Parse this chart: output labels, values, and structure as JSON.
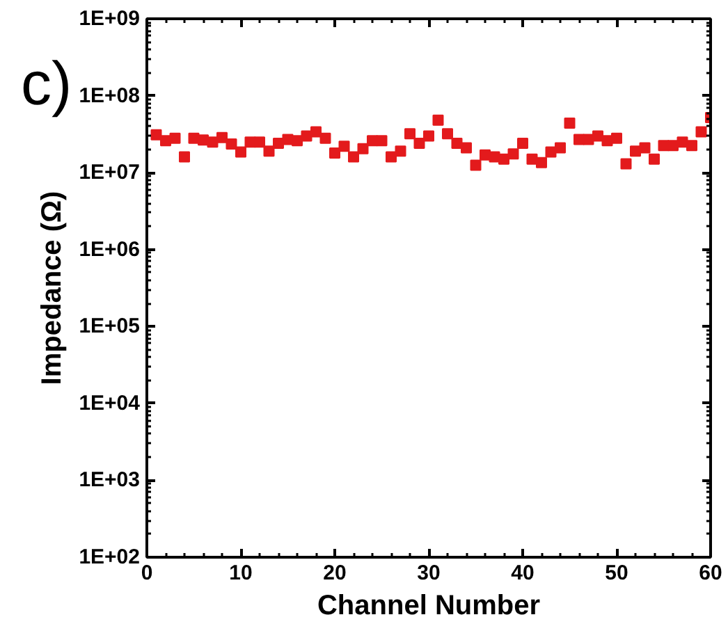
{
  "chart_data": {
    "type": "scatter",
    "xlabel": "Channel Number",
    "ylabel": "Impedance (Ω)",
    "annotations": [
      "c)"
    ],
    "x": [
      1,
      2,
      3,
      4,
      5,
      6,
      7,
      8,
      9,
      10,
      11,
      12,
      13,
      14,
      15,
      16,
      17,
      18,
      19,
      20,
      21,
      22,
      23,
      24,
      25,
      26,
      27,
      28,
      29,
      30,
      31,
      32,
      33,
      34,
      35,
      36,
      37,
      38,
      39,
      40,
      41,
      42,
      43,
      44,
      45,
      46,
      47,
      48,
      49,
      50,
      51,
      52,
      53,
      54,
      55,
      56,
      57,
      58,
      59,
      60
    ],
    "series": [
      {
        "color": "#e31a1c",
        "values": [
          31000000.0,
          26000000.0,
          28000000.0,
          16000000.0,
          28000000.0,
          26500000.0,
          25000000.0,
          28500000.0,
          23500000.0,
          18500000.0,
          25000000.0,
          25000000.0,
          19000000.0,
          24000000.0,
          27000000.0,
          26000000.0,
          30000000.0,
          34000000.0,
          28000000.0,
          18000000.0,
          22000000.0,
          16000000.0,
          20500000.0,
          26000000.0,
          26000000.0,
          16000000.0,
          19000000.0,
          32000000.0,
          24000000.0,
          30000000.0,
          48000000.0,
          32000000.0,
          24000000.0,
          21000000.0,
          12500000.0,
          17000000.0,
          16000000.0,
          15000000.0,
          17500000.0,
          24000000.0,
          15000000.0,
          13500000.0,
          18500000.0,
          21000000.0,
          44000000.0,
          27000000.0,
          27000000.0,
          30000000.0,
          26000000.0,
          28000000.0,
          13000000.0,
          19000000.0,
          21000000.0,
          15000000.0,
          22500000.0,
          22500000.0,
          25000000.0,
          22500000.0,
          34000000.0,
          52000000.0
        ]
      }
    ],
    "marker": "square",
    "log": "y",
    "grid": false,
    "xlim": [
      0,
      60
    ],
    "xticks": [
      0,
      10,
      20,
      30,
      40,
      50,
      60
    ],
    "ylim": [
      100,
      1000000000
    ],
    "yticks": [
      {
        "value": 100,
        "label": "1E+02"
      },
      {
        "value": 1000,
        "label": "1E+03"
      },
      {
        "value": 10000,
        "label": "1E+04"
      },
      {
        "value": 100000,
        "label": "1E+05"
      },
      {
        "value": 1000000,
        "label": "1E+06"
      },
      {
        "value": 10000000,
        "label": "1E+07"
      },
      {
        "value": 100000000,
        "label": "1E+08"
      },
      {
        "value": 1000000000,
        "label": "1E+09"
      }
    ]
  }
}
